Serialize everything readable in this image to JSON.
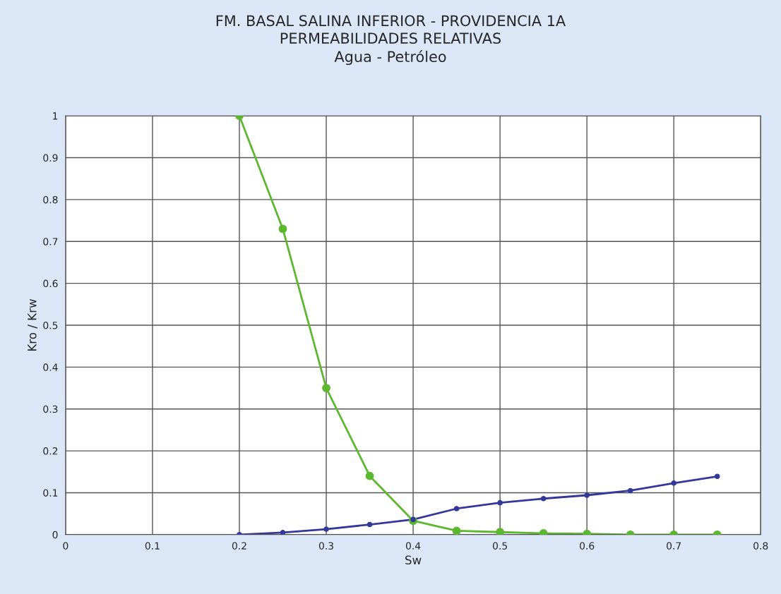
{
  "chart_data": {
    "type": "line",
    "title": "FM. BASAL SALINA INFERIOR - PROVIDENCIA 1A\nPERMEABILIDADES RELATIVAS\nAgua - Petróleo",
    "xlabel": "Sw",
    "ylabel": "Kro / Krw",
    "x": [
      0.2,
      0.25,
      0.3,
      0.35,
      0.4,
      0.45,
      0.5,
      0.55,
      0.6,
      0.65,
      0.7,
      0.75
    ],
    "series": [
      {
        "color": "#5cb82e",
        "values": [
          1.0,
          0.73,
          0.35,
          0.14,
          0.033,
          0.009,
          0.006,
          0.003,
          0.002,
          0.0,
          0.0,
          0.0
        ]
      },
      {
        "color": "#34389a",
        "values": [
          0.0,
          0.005,
          0.013,
          0.024,
          0.036,
          0.062,
          0.076,
          0.086,
          0.094,
          0.105,
          0.123,
          0.139
        ]
      }
    ],
    "xlim": [
      0,
      0.8
    ],
    "xticks": [
      0,
      0.1,
      0.2,
      0.3,
      0.4,
      0.5,
      0.6,
      0.7,
      0.8
    ],
    "ylim": [
      0,
      1
    ],
    "yticks": [
      0,
      0.1,
      0.2,
      0.3,
      0.4,
      0.5,
      0.6,
      0.7,
      0.8,
      0.9,
      1
    ],
    "grid": true,
    "marker": "circle",
    "line_style": "solid"
  }
}
